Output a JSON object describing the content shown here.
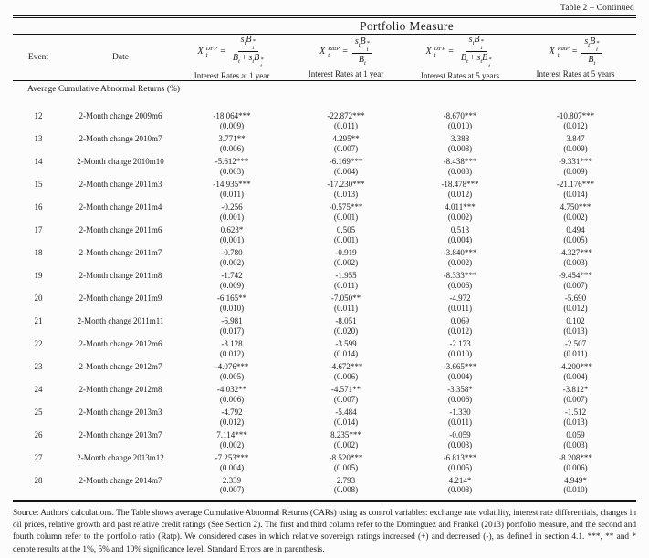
{
  "caption": "Table 2 – Continued",
  "table": {
    "group_header": "Portfolio Measure",
    "col_event": "Event",
    "col_date": "Date",
    "math": {
      "X": "X",
      "sub_t": "t",
      "sup_dfp": "DFP",
      "sup_ratp": "RatP",
      "eq": "=",
      "s": "s",
      "B": "B",
      "star": "*",
      "plus": "+"
    },
    "columns": [
      {
        "measure": "DFP",
        "rate": "Interest Rates at 1 year"
      },
      {
        "measure": "RatP",
        "rate": "Interest Rates at 1 year"
      },
      {
        "measure": "DFP",
        "rate": "Interest Rates at 5 years"
      },
      {
        "measure": "RatP",
        "rate": "Interest Rates at 5 years"
      }
    ],
    "section_label": "Average Cumulative Abnormal Returns (%)",
    "rows": [
      {
        "event": "12",
        "date": "2-Month change 2009m6",
        "values": [
          "-18.064***",
          "-22.872***",
          "-8.670***",
          "-10.807***"
        ],
        "se": [
          "(0.009)",
          "(0.011)",
          "(0.010)",
          "(0.012)"
        ]
      },
      {
        "event": "13",
        "date": "2-Month change 2010m7",
        "values": [
          "3.771**",
          "4.295**",
          "3.388",
          "3.847"
        ],
        "se": [
          "(0.006)",
          "(0.007)",
          "(0.008)",
          "(0.009)"
        ]
      },
      {
        "event": "14",
        "date": "2-Month change 2010m10",
        "values": [
          "-5.612***",
          "-6.169***",
          "-8.438***",
          "-9.331***"
        ],
        "se": [
          "(0.003)",
          "(0.004)",
          "(0.008)",
          "(0.009)"
        ]
      },
      {
        "event": "15",
        "date": "2-Month change 2011m3",
        "values": [
          "-14.935***",
          "-17.230***",
          "-18.478***",
          "-21.176***"
        ],
        "se": [
          "(0.011)",
          "(0.013)",
          "(0.012)",
          "(0.014)"
        ]
      },
      {
        "event": "16",
        "date": "2-Month change 2011m4",
        "values": [
          "-0.256",
          "-0.575***",
          "4.011***",
          "4.750***"
        ],
        "se": [
          "(0.001)",
          "(0.001)",
          "(0.002)",
          "(0.002)"
        ]
      },
      {
        "event": "17",
        "date": "2-Month change 2011m6",
        "values": [
          "0.623*",
          "0.505",
          "0.513",
          "0.494"
        ],
        "se": [
          "(0.001)",
          "(0.001)",
          "(0.004)",
          "(0.005)"
        ]
      },
      {
        "event": "18",
        "date": "2-Month change 2011m7",
        "values": [
          "-0.780",
          "-0.919",
          "-3.840***",
          "-4.327***"
        ],
        "se": [
          "(0.002)",
          "(0.002)",
          "(0.002)",
          "(0.003)"
        ]
      },
      {
        "event": "19",
        "date": "2-Month change 2011m8",
        "values": [
          "-1.742",
          "-1.955",
          "-8.333***",
          "-9.454***"
        ],
        "se": [
          "(0.009)",
          "(0.011)",
          "(0.006)",
          "(0.007)"
        ]
      },
      {
        "event": "20",
        "date": "2-Month change 2011m9",
        "values": [
          "-6.165**",
          "-7.050**",
          "-4.972",
          "-5.690"
        ],
        "se": [
          "(0.010)",
          "(0.011)",
          "(0.011)",
          "(0.012)"
        ]
      },
      {
        "event": "21",
        "date": "2-Month change 2011m11",
        "values": [
          "-6.981",
          "-8.051",
          "0.069",
          "0.102"
        ],
        "se": [
          "(0.017)",
          "(0.020)",
          "(0.012)",
          "(0.013)"
        ]
      },
      {
        "event": "22",
        "date": "2-Month change 2012m6",
        "values": [
          "-3.128",
          "-3.599",
          "-2.173",
          "-2.507"
        ],
        "se": [
          "(0.012)",
          "(0.014)",
          "(0.010)",
          "(0.011)"
        ]
      },
      {
        "event": "23",
        "date": "2-Month change 2012m7",
        "values": [
          "-4.076***",
          "-4.672***",
          "-3.665***",
          "-4.200***"
        ],
        "se": [
          "(0.005)",
          "(0.006)",
          "(0.004)",
          "(0.004)"
        ]
      },
      {
        "event": "24",
        "date": "2-Month change 2012m8",
        "values": [
          "-4.032**",
          "-4.571**",
          "-3.358*",
          "-3.812*"
        ],
        "se": [
          "(0.006)",
          "(0.007)",
          "(0.006)",
          "(0.007)"
        ]
      },
      {
        "event": "25",
        "date": "2-Month change 2013m3",
        "values": [
          "-4.792",
          "-5.484",
          "-1.330",
          "-1.512"
        ],
        "se": [
          "(0.012)",
          "(0.014)",
          "(0.011)",
          "(0.013)"
        ]
      },
      {
        "event": "26",
        "date": "2-Month change 2013m7",
        "values": [
          "7.114***",
          "8.235***",
          "-0.059",
          "0.059"
        ],
        "se": [
          "(0.002)",
          "(0.002)",
          "(0.003)",
          "(0.003)"
        ]
      },
      {
        "event": "27",
        "date": "2-Month change 2013m12",
        "values": [
          "-7.253***",
          "-8.520***",
          "-6.813***",
          "-8.208***"
        ],
        "se": [
          "(0.004)",
          "(0.005)",
          "(0.005)",
          "(0.006)"
        ]
      },
      {
        "event": "28",
        "date": "2-Month change 2014m7",
        "values": [
          "2.339",
          "2.793",
          "4.214*",
          "4.949*"
        ],
        "se": [
          "(0.007)",
          "(0.008)",
          "(0.008)",
          "(0.010)"
        ]
      }
    ]
  },
  "footnote": "Source: Authors' calculations. The Table shows average Cumulative Abnormal Returns (CARs) using as control variables: exchange rate volatility, interest rate differentials, changes in oil prices, relative growth and past relative credit ratings (See Section 2). The first and third column refer to the Dominguez and Frankel (2013) portfolio measure, and the second and fourth column refer to the portfolio ratio (Ratp). We considered cases in which relative sovereign ratings increased (+) and decreased (-), as defined in section 4.1. ***, ** and * denote results at the 1%, 5% and 10% significance level. Standard Errors are in parenthesis."
}
